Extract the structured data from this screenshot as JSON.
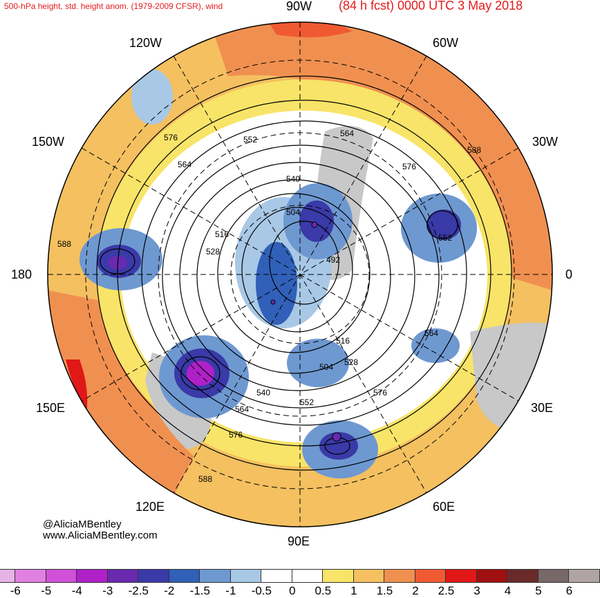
{
  "header": {
    "left": "500-hPa height, std. height anom. (1979-2009 CFSR), wind",
    "north_label": "90W",
    "right": "(84 h fcst) 0000 UTC 3 May 2018"
  },
  "longitude_labels": {
    "w120": "120W",
    "w60": "60W",
    "w150": "150W",
    "w30": "30W",
    "lon180": "180",
    "lon0": "0",
    "e150": "150E",
    "e30": "30E",
    "e120": "120E",
    "e60": "60E",
    "e90": "90E"
  },
  "contour_labels": {
    "l576a": "576",
    "l552a": "552",
    "l564a": "564",
    "l540a": "540",
    "l504a": "504",
    "l516a": "516",
    "l528a": "528",
    "l492": "492",
    "l564b": "564",
    "l576b": "576",
    "l588a": "588",
    "l552b": "552",
    "l588b": "588",
    "l516b": "516",
    "l528b": "528",
    "l504b": "504",
    "l564c": "564",
    "l576c": "576",
    "l540b": "540",
    "l552c": "552",
    "l564d": "564",
    "l576d": "576",
    "l588c": "588"
  },
  "credits": {
    "handle": "@AliciaMBentley",
    "site": "www.AliciaMBentley.com"
  },
  "colorbar": {
    "ticks": [
      "-6",
      "-5",
      "-4",
      "-3",
      "-2.5",
      "-2",
      "-1.5",
      "-1",
      "-0.5",
      "0",
      "0.5",
      "1",
      "1.5",
      "2",
      "2.5",
      "3",
      "4",
      "5",
      "6"
    ],
    "colors": [
      "#e6b3e6",
      "#e080e0",
      "#d050d8",
      "#b020c8",
      "#6a2ab0",
      "#3a3aa8",
      "#3060b8",
      "#6e98d0",
      "#a8c8e6",
      "#ffffff",
      "#ffffff",
      "#f8e468",
      "#f4c060",
      "#f09050",
      "#f05a32",
      "#e01818",
      "#a01010",
      "#6a2a2a",
      "#786868",
      "#b0a4a4"
    ]
  }
}
